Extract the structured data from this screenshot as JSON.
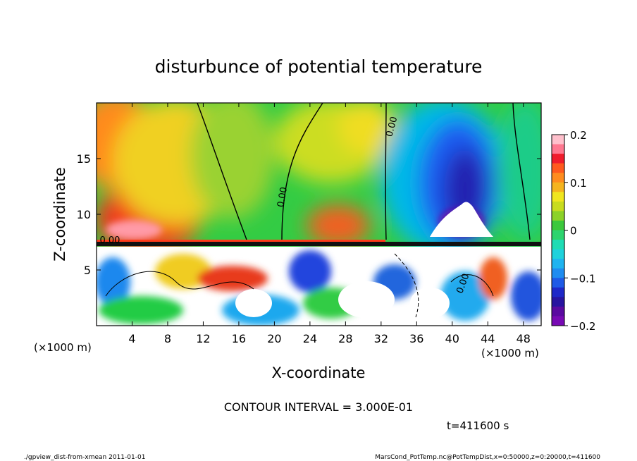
{
  "chart_data": {
    "type": "heatmap",
    "title": "disturbunce of potential temperature",
    "xlabel": "X-coordinate",
    "ylabel": "Z-coordinate",
    "x_unit_label": "(×1000 m)",
    "y_unit_label": "(×1000 m)",
    "xlim": [
      0,
      50
    ],
    "ylim": [
      0,
      20
    ],
    "x_ticks": [
      4,
      8,
      12,
      16,
      20,
      24,
      28,
      32,
      36,
      40,
      44,
      48
    ],
    "y_ticks": [
      5,
      10,
      15
    ],
    "colorbar": {
      "range": [
        -0.2,
        0.2
      ],
      "ticks": [
        {
          "value": 0.2,
          "label": "0.2"
        },
        {
          "value": 0.1,
          "label": "0.1"
        },
        {
          "value": 0.0,
          "label": "0"
        },
        {
          "value": -0.1,
          "label": "−0.1"
        },
        {
          "value": -0.2,
          "label": "−0.2"
        }
      ]
    },
    "contour_labels": [
      {
        "text": "0.00",
        "x": 1.5,
        "z": 7.4,
        "angle": 0
      },
      {
        "text": "0.00",
        "x": 21.2,
        "z": 11.5,
        "angle": -80
      },
      {
        "text": "0.00",
        "x": 33.5,
        "z": 17.8,
        "angle": -75
      },
      {
        "text": "0.00",
        "x": 41.5,
        "z": 3.7,
        "angle": -70
      }
    ],
    "contour_interval_text": "CONTOUR INTERVAL = 3.000E-01",
    "time_text": "t=411600 s"
  },
  "footer": {
    "left": "./gpview_dist-from-xmean  2011-01-01",
    "right": "MarsCond_PotTemp.nc@PotTempDist,x=0:50000,z=0:20000,t=411600"
  }
}
